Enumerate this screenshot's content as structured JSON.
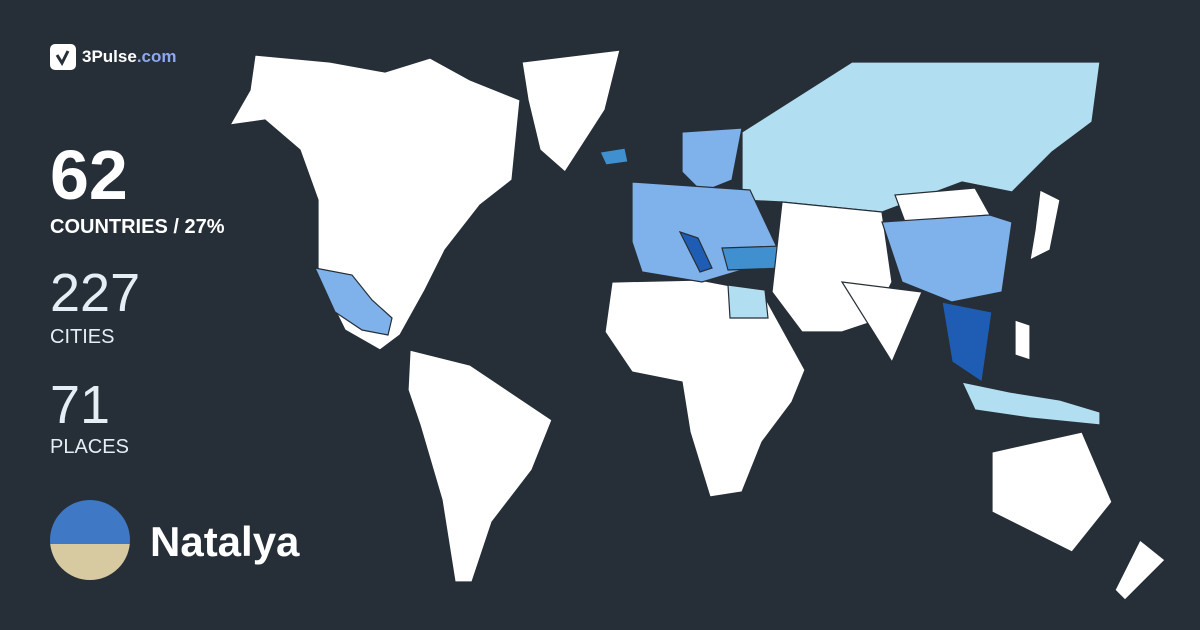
{
  "brand": {
    "name": "3Pulse",
    "domain": ".com",
    "icon": "check-pulse-icon"
  },
  "stats": {
    "countries": {
      "value": "62",
      "label": "COUNTRIES / 27%"
    },
    "cities": {
      "value": "227",
      "label": "CITIES"
    },
    "places": {
      "value": "71",
      "label": "PLACES"
    }
  },
  "user": {
    "name": "Natalya"
  },
  "colors": {
    "background": "#262f37",
    "unvisited": "#ffffff",
    "level1": "#b1def0",
    "level2": "#7fb1ea",
    "level3": "#4090d0",
    "level4": "#1f5db5",
    "brand_accent": "#8ea8f0"
  }
}
